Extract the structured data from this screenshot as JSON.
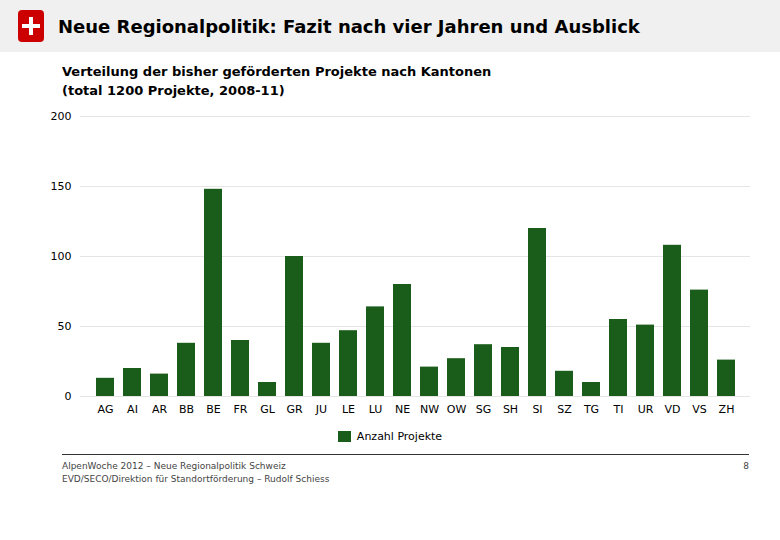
{
  "chart_data": {
    "type": "bar",
    "title": "Neue Regionalpolitik: Fazit nach vier Jahren und Ausblick",
    "subtitle": [
      "Verteilung der bisher geförderten Projekte nach Kantonen",
      "(total 1200 Projekte, 2008-11)"
    ],
    "categories": [
      "AG",
      "AI",
      "AR",
      "BB",
      "BE",
      "FR",
      "GL",
      "GR",
      "JU",
      "LE",
      "LU",
      "NE",
      "NW",
      "OW",
      "SG",
      "SH",
      "SI",
      "SZ",
      "TG",
      "TI",
      "UR",
      "VD",
      "VS",
      "ZH"
    ],
    "series": [
      {
        "name": "Anzahl Projekte",
        "color": "#1a5c1a",
        "values": [
          13,
          20,
          16,
          38,
          148,
          40,
          10,
          100,
          38,
          47,
          64,
          80,
          21,
          27,
          37,
          35,
          120,
          18,
          10,
          55,
          51,
          108,
          76,
          26
        ]
      }
    ],
    "ylim": [
      0,
      200
    ],
    "yticks": [
      0,
      50,
      100,
      150,
      200
    ],
    "grid": true,
    "legend": "bottom",
    "annotations": [
      "AlpenWoche 2012 – Neue Regionalpolitik Schweiz",
      "EVD/SECO/Direktion für Standortförderung – Rudolf Schiess",
      "8"
    ]
  }
}
